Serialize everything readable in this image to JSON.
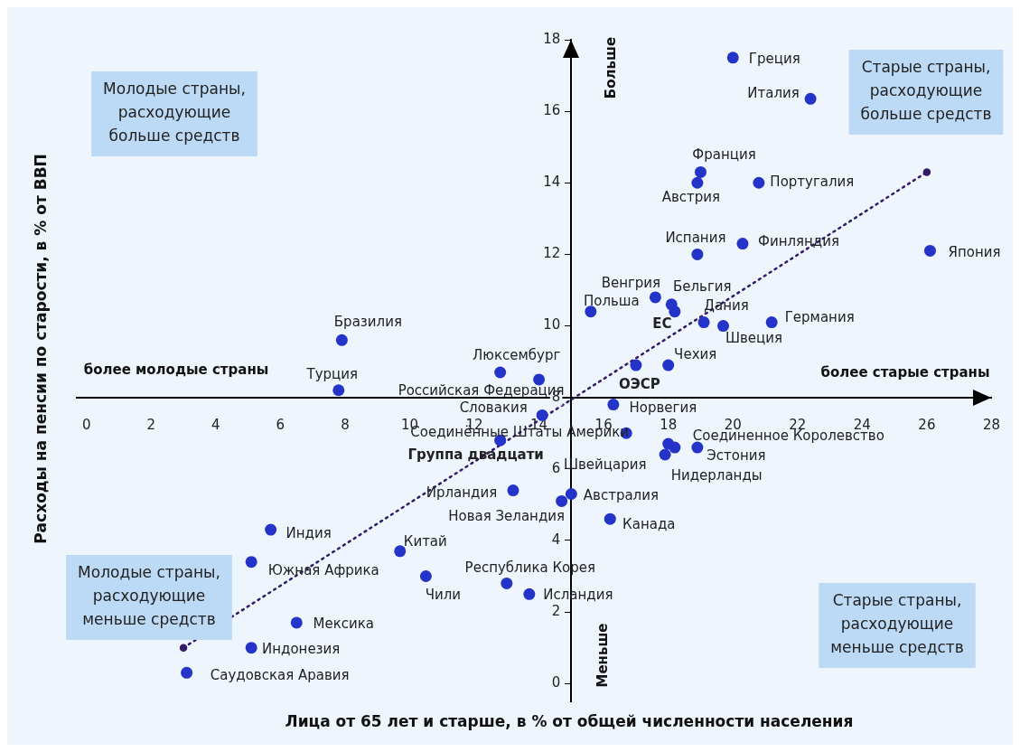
{
  "chart_data": {
    "type": "scatter",
    "xlabel": "Лица от 65 лет и старше, в % от общей численности населения",
    "ylabel": "Расходы на пенсии по старости, в % от ВВП",
    "xlim": [
      -0.3,
      28
    ],
    "xticks": [
      0,
      2,
      4,
      6,
      8,
      10,
      12,
      14,
      16,
      18,
      20,
      22,
      24,
      26,
      28
    ],
    "ylim": [
      -0.5,
      18
    ],
    "yticks": [
      0,
      2,
      4,
      6,
      8,
      10,
      12,
      14,
      16,
      18
    ],
    "series": [
      {
        "type": "scatter",
        "color": "#2433c8",
        "marker": "circle",
        "x": [
          20.0,
          22.4,
          19.0,
          18.9,
          20.8,
          18.9,
          20.3,
          26.1,
          17.6,
          18.1,
          19.1,
          15.6,
          21.2,
          19.7,
          7.9,
          18.0,
          12.8,
          14.0,
          7.8,
          16.3,
          14.1,
          16.7,
          18.2,
          18.0,
          18.9,
          17.9,
          13.2,
          15.0,
          14.7,
          16.2,
          5.7,
          9.7,
          5.1,
          10.5,
          13.0,
          13.7,
          6.5,
          5.1,
          3.1
        ],
        "values": [
          17.5,
          16.35,
          14.3,
          14.0,
          14.0,
          12.0,
          12.3,
          12.1,
          10.8,
          10.6,
          10.1,
          10.4,
          10.1,
          10.0,
          9.6,
          8.9,
          8.7,
          8.5,
          8.2,
          7.8,
          7.5,
          7.0,
          6.6,
          6.7,
          6.6,
          6.4,
          5.4,
          5.3,
          5.1,
          4.6,
          4.3,
          3.7,
          3.4,
          3.0,
          2.8,
          2.5,
          1.7,
          1.0,
          0.3
        ]
      },
      {
        "type": "scatter",
        "color": "#2433c8",
        "marker": "circle",
        "x": [
          18.2,
          17.0,
          12.8
        ],
        "values": [
          10.4,
          8.9,
          6.8
        ]
      },
      {
        "type": "line",
        "color": "#331a66",
        "marker": "circle",
        "line_style": "dotted",
        "x": [
          3.0,
          26.0
        ],
        "values": [
          1.0,
          14.3
        ]
      }
    ],
    "annotations": [
      "Молодые страны,\nрасходующие\nбольше средств",
      "Старые страны,\nрасходующие\nбольше средств",
      "Молодые страны,\nрасходующие\nменьше средств",
      "Старые страны,\nрасходующие\nменьше средств",
      "более молодые страны",
      "более старые страны",
      "Больше",
      "Меньше",
      {
        "text": "Греция",
        "x": 20.0,
        "y": 17.5
      },
      {
        "text": "Италия",
        "x": 22.4,
        "y": 16.35
      },
      {
        "text": "Франция",
        "x": 19.0,
        "y": 14.3
      },
      {
        "text": "Австрия",
        "x": 18.9,
        "y": 14.0
      },
      {
        "text": "Португалия",
        "x": 20.8,
        "y": 14.0
      },
      {
        "text": "Испания",
        "x": 18.9,
        "y": 12.0
      },
      {
        "text": "Финляндия",
        "x": 20.3,
        "y": 12.3
      },
      {
        "text": "Япония",
        "x": 26.1,
        "y": 12.1
      },
      {
        "text": "Венгрия",
        "x": 17.6,
        "y": 10.8
      },
      {
        "text": "Бельгия",
        "x": 18.1,
        "y": 10.6
      },
      {
        "text": "Дания",
        "x": 19.1,
        "y": 10.1
      },
      {
        "text": "Польша",
        "x": 15.6,
        "y": 10.4
      },
      {
        "text": "Германия",
        "x": 21.2,
        "y": 10.1
      },
      {
        "text": "Швеция",
        "x": 19.7,
        "y": 10.0
      },
      {
        "text": "Бразилия",
        "x": 7.9,
        "y": 9.6
      },
      {
        "text": "Чехия",
        "x": 18.0,
        "y": 8.9
      },
      {
        "text": "Люксембург",
        "x": 12.8,
        "y": 8.7
      },
      {
        "text": "Российская Федерация",
        "x": 14.0,
        "y": 8.5
      },
      {
        "text": "Турция",
        "x": 7.8,
        "y": 8.2
      },
      {
        "text": "Норвегия",
        "x": 16.3,
        "y": 7.8
      },
      {
        "text": "Словакия",
        "x": 14.1,
        "y": 7.5
      },
      {
        "text": "Соединённые Штаты Америки",
        "x": 16.7,
        "y": 7.0
      },
      {
        "text": "Соединенное Королевство",
        "x": 18.2,
        "y": 6.6
      },
      {
        "text": "Швейцария",
        "x": 18.0,
        "y": 6.7
      },
      {
        "text": "Эстония",
        "x": 18.9,
        "y": 6.6
      },
      {
        "text": "Нидерланды",
        "x": 17.9,
        "y": 6.4
      },
      {
        "text": "Ирландия",
        "x": 13.2,
        "y": 5.4
      },
      {
        "text": "Австралия",
        "x": 15.0,
        "y": 5.3
      },
      {
        "text": "Новая Зеландия",
        "x": 14.7,
        "y": 5.1
      },
      {
        "text": "Канада",
        "x": 16.2,
        "y": 4.6
      },
      {
        "text": "Индия",
        "x": 5.7,
        "y": 4.3
      },
      {
        "text": "Китай",
        "x": 9.7,
        "y": 3.7
      },
      {
        "text": "Южная Африка",
        "x": 5.1,
        "y": 3.4
      },
      {
        "text": "Чили",
        "x": 10.5,
        "y": 3.0
      },
      {
        "text": "Республика Корея",
        "x": 13.0,
        "y": 2.8
      },
      {
        "text": "Исландия",
        "x": 13.7,
        "y": 2.5
      },
      {
        "text": "Мексика",
        "x": 6.5,
        "y": 1.7
      },
      {
        "text": "Индонезия",
        "x": 5.1,
        "y": 1.0
      },
      {
        "text": "Саудовская Аравия",
        "x": 3.1,
        "y": 0.3
      },
      {
        "text": "ЕС",
        "x": 18.2,
        "y": 10.4
      },
      {
        "text": "ОЭСР",
        "x": 17.0,
        "y": 8.9
      },
      {
        "text": "Группа двадцати",
        "x": 12.8,
        "y": 6.8
      }
    ]
  }
}
